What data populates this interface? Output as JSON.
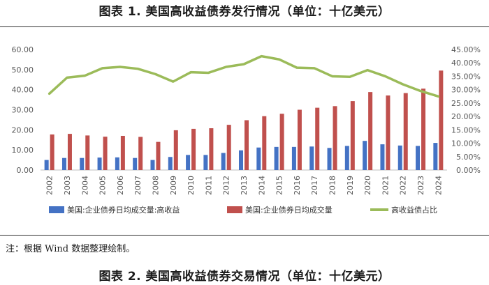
{
  "figure_title": "图表 1.   美国高收益债券发行情况（单位：十亿美元）",
  "note": "注：根据 Wind 数据整理绘制。",
  "next_figure_title": "图表 2.   美国高收益债券交易情况（单位：十亿美元）",
  "colors": {
    "blue": "#4472C4",
    "red": "#C0504D",
    "green": "#9BBB59",
    "axis_text": "#595959",
    "grid": "#D9D9D9"
  },
  "chart_data": {
    "type": "bar",
    "title": "",
    "xlabel": "",
    "ylabel": "",
    "categories": [
      "2002",
      "2003",
      "2004",
      "2005",
      "2006",
      "2007",
      "2008",
      "2009",
      "2010",
      "2011",
      "2012",
      "2013",
      "2014",
      "2015",
      "2016",
      "2017",
      "2018",
      "2019",
      "2020",
      "2021",
      "2022",
      "2023",
      "2024"
    ],
    "y_left": {
      "range": [
        0,
        60
      ],
      "ticks": [
        "0.00",
        "10.00",
        "20.00",
        "30.00",
        "40.00",
        "50.00",
        "60.00"
      ]
    },
    "y_right": {
      "range": [
        0,
        45
      ],
      "ticks": [
        "0.00%",
        "5.00%",
        "10.00%",
        "15.00%",
        "20.00%",
        "25.00%",
        "30.00%",
        "35.00%",
        "40.00%",
        "45.00%"
      ]
    },
    "series": [
      {
        "name": "美国:企业债券日均成交量:高收益",
        "type": "bar",
        "axis": "left",
        "color": "#4472C4",
        "values": [
          5.0,
          6.0,
          6.0,
          6.2,
          6.3,
          6.0,
          5.0,
          6.5,
          7.5,
          7.5,
          8.5,
          9.8,
          11.2,
          11.5,
          11.5,
          11.7,
          11.0,
          12.0,
          14.5,
          12.8,
          12.2,
          12.0,
          13.5
        ]
      },
      {
        "name": "美国:企业债券日均成交量",
        "type": "bar",
        "axis": "left",
        "color": "#C0504D",
        "values": [
          17.7,
          18.0,
          17.2,
          16.6,
          17.0,
          16.5,
          14.0,
          19.8,
          20.5,
          20.8,
          22.5,
          24.8,
          26.8,
          28.0,
          30.0,
          31.0,
          31.8,
          34.3,
          38.8,
          37.1,
          38.3,
          40.5,
          49.5
        ]
      },
      {
        "name": "高收益债占比",
        "type": "line",
        "axis": "right",
        "color": "#9BBB59",
        "values": [
          28.5,
          34.5,
          35.2,
          38.0,
          38.5,
          37.8,
          35.8,
          33.0,
          36.5,
          36.3,
          38.5,
          39.5,
          42.5,
          41.3,
          38.2,
          38.0,
          35.0,
          34.8,
          37.3,
          35.0,
          32.0,
          29.5,
          27.5
        ]
      }
    ],
    "legend_position": "bottom",
    "grid": false
  }
}
